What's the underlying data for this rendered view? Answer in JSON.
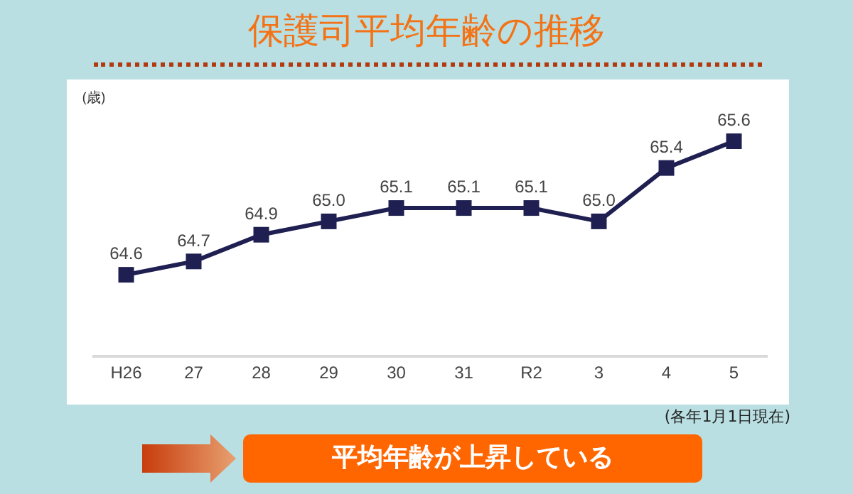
{
  "chart_data": {
    "type": "line",
    "title": "保護司平均年齢の推移",
    "ylabel": "(歳)",
    "categories": [
      "H26",
      "27",
      "28",
      "29",
      "30",
      "31",
      "R2",
      "3",
      "4",
      "5"
    ],
    "series": [
      {
        "color": "#1f1f52",
        "values": [
          64.6,
          64.7,
          64.9,
          65.0,
          65.1,
          65.1,
          65.1,
          65.0,
          65.4,
          65.6
        ],
        "value_labels": [
          "64.6",
          "64.7",
          "64.9",
          "65.0",
          "65.1",
          "65.1",
          "65.1",
          "65.0",
          "65.4",
          "65.6"
        ]
      }
    ],
    "marker": "square",
    "line_style": "solid",
    "tick_labels": "x",
    "annotations": [
      "(各年1月1日現在)",
      "平均年齢が上昇している"
    ]
  }
}
